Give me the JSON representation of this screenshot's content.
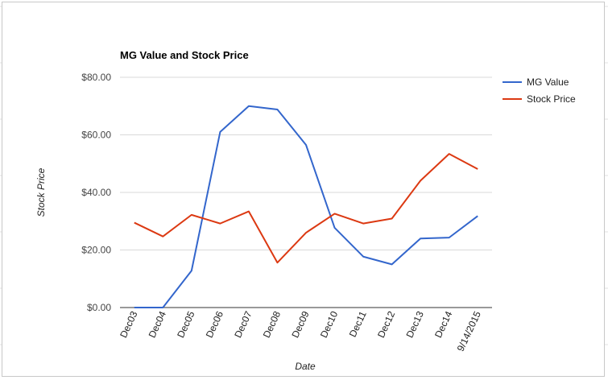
{
  "chart_data": {
    "type": "line",
    "title": "MG Value and Stock Price",
    "xlabel": "Date",
    "ylabel": "Stock Price",
    "categories": [
      "Dec03",
      "Dec04",
      "Dec05",
      "Dec06",
      "Dec07",
      "Dec08",
      "Dec09",
      "Dec10",
      "Dec11",
      "Dec12",
      "Dec13",
      "Dec14",
      "9/14/2015"
    ],
    "y_ticks": [
      "$0.00",
      "$20.00",
      "$40.00",
      "$60.00",
      "$80.00"
    ],
    "ylim": [
      0,
      80
    ],
    "grid": true,
    "legend_position": "right",
    "series": [
      {
        "name": "MG Value",
        "color": "#3366cc",
        "values": [
          0,
          0,
          12.8,
          61,
          70,
          68.8,
          56.5,
          27.7,
          17.7,
          15,
          24,
          24.3,
          31.8
        ]
      },
      {
        "name": "Stock Price",
        "color": "#dc3912",
        "values": [
          29.5,
          24.7,
          32.2,
          29.2,
          33.4,
          15.6,
          26,
          32.6,
          29.2,
          30.9,
          44.1,
          53.4,
          48.1
        ]
      }
    ]
  }
}
